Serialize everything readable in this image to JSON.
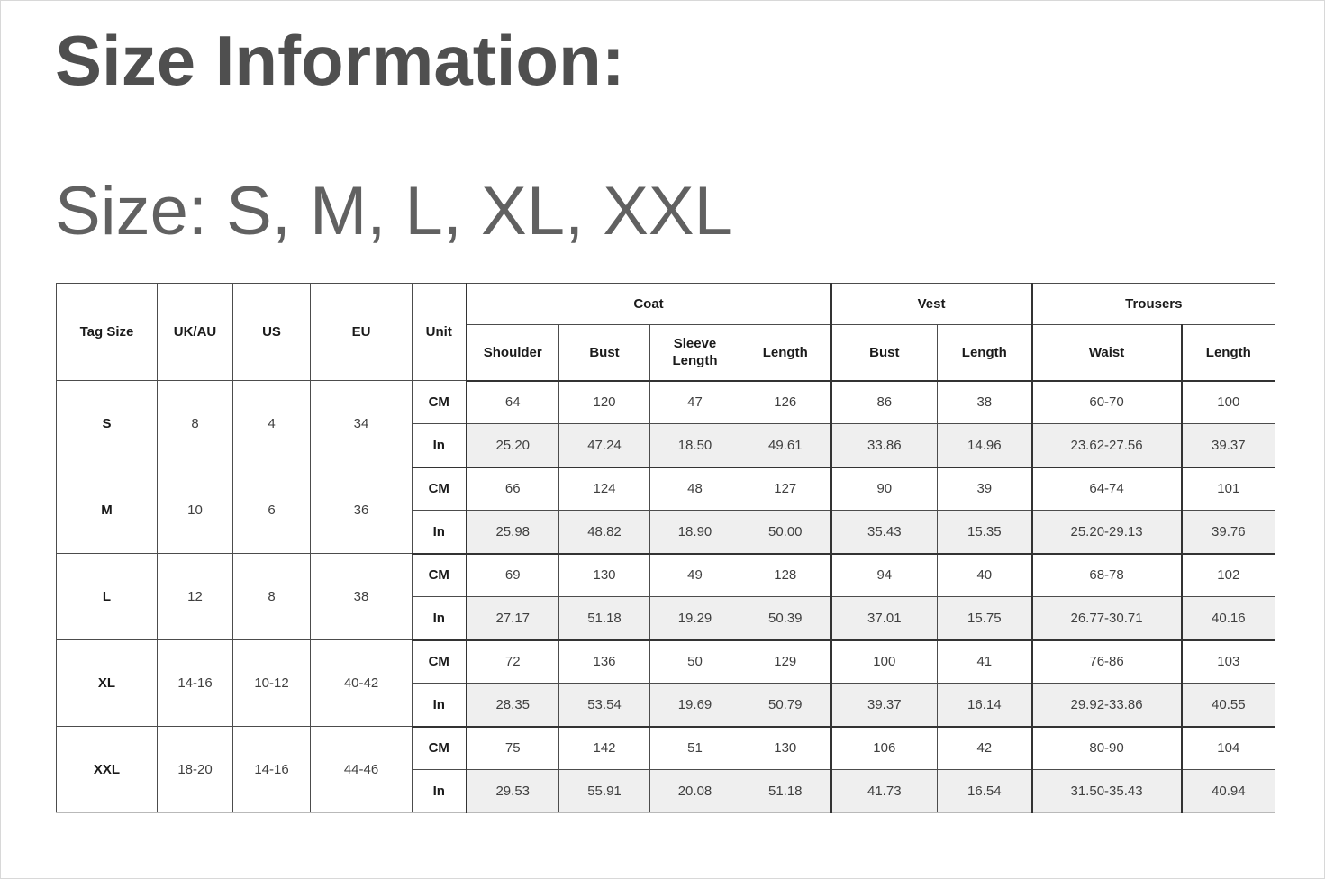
{
  "page": {
    "title": "Size Information:",
    "subtitle": "Size: S, M, L, XL, XXL"
  },
  "table": {
    "corner_headers": [
      "Tag Size",
      "UK/AU",
      "US",
      "EU",
      "Unit"
    ],
    "groups": [
      {
        "label": "Coat",
        "columns": [
          "Shoulder",
          "Bust",
          "Sleeve Length",
          "Length"
        ]
      },
      {
        "label": "Vest",
        "columns": [
          "Bust",
          "Length"
        ]
      },
      {
        "label": "Trousers",
        "columns": [
          "Waist",
          "Length"
        ]
      }
    ],
    "unit_labels": [
      "CM",
      "In"
    ],
    "rows": [
      {
        "tag_size": "S",
        "uk_au": "8",
        "us": "4",
        "eu": "34",
        "cm": [
          "64",
          "120",
          "47",
          "126",
          "86",
          "38",
          "60-70",
          "100"
        ],
        "in": [
          "25.20",
          "47.24",
          "18.50",
          "49.61",
          "33.86",
          "14.96",
          "23.62-27.56",
          "39.37"
        ]
      },
      {
        "tag_size": "M",
        "uk_au": "10",
        "us": "6",
        "eu": "36",
        "cm": [
          "66",
          "124",
          "48",
          "127",
          "90",
          "39",
          "64-74",
          "101"
        ],
        "in": [
          "25.98",
          "48.82",
          "18.90",
          "50.00",
          "35.43",
          "15.35",
          "25.20-29.13",
          "39.76"
        ]
      },
      {
        "tag_size": "L",
        "uk_au": "12",
        "us": "8",
        "eu": "38",
        "cm": [
          "69",
          "130",
          "49",
          "128",
          "94",
          "40",
          "68-78",
          "102"
        ],
        "in": [
          "27.17",
          "51.18",
          "19.29",
          "50.39",
          "37.01",
          "15.75",
          "26.77-30.71",
          "40.16"
        ]
      },
      {
        "tag_size": "XL",
        "uk_au": "14-16",
        "us": "10-12",
        "eu": "40-42",
        "cm": [
          "72",
          "136",
          "50",
          "129",
          "100",
          "41",
          "76-86",
          "103"
        ],
        "in": [
          "28.35",
          "53.54",
          "19.69",
          "50.79",
          "39.37",
          "16.14",
          "29.92-33.86",
          "40.55"
        ]
      },
      {
        "tag_size": "XXL",
        "uk_au": "18-20",
        "us": "14-16",
        "eu": "44-46",
        "cm": [
          "75",
          "142",
          "51",
          "130",
          "106",
          "42",
          "80-90",
          "104"
        ],
        "in": [
          "29.53",
          "55.91",
          "20.08",
          "51.18",
          "41.73",
          "16.54",
          "31.50-35.43",
          "40.94"
        ]
      }
    ]
  },
  "colors": {
    "title_text": "#4f4f4f",
    "subtitle_text": "#616161",
    "table_border": "#4c4c4c",
    "heavy_border": "#333333",
    "inch_row_shade": "#efefef",
    "header_text": "#1a1a1a",
    "data_text": "#3f3f3f"
  }
}
